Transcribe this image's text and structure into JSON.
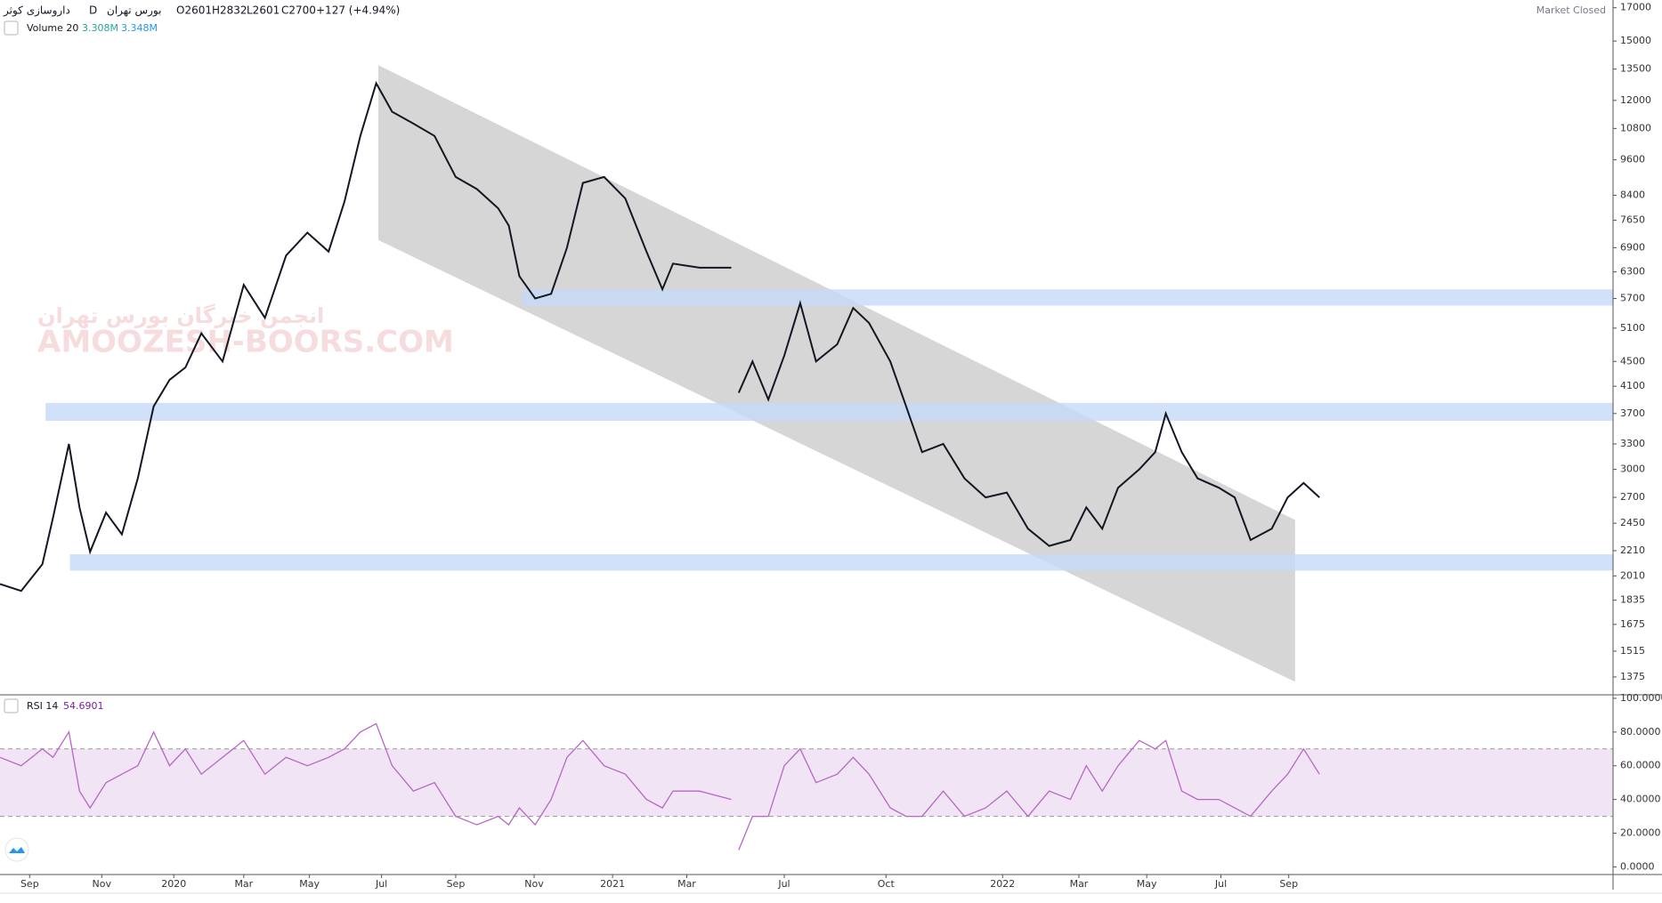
{
  "header": {
    "symbol": "داروسازی کوثر",
    "interval": "D",
    "exchange": "بورس تهران",
    "open": "O2601",
    "high": "H2832",
    "low": "L2601",
    "close": "C2700",
    "change": "+127 (+4.94%)",
    "status": "Market Closed"
  },
  "watermark": [
    "انجمن خبرگان بورس تهران",
    "AMOOZESH-BOORS.COM"
  ],
  "chart_data": [
    {
      "type": "line",
      "log_scale": true,
      "color": "#131722",
      "volume_legend": {
        "label": "Volume 20",
        "values": [
          "3.308M",
          "3.348M"
        ],
        "colors": [
          "#26a69a",
          "#2196f3"
        ]
      },
      "x": [
        0,
        10,
        20,
        25,
        32.5,
        37.5,
        42.5,
        50,
        57.5,
        65,
        72.5,
        80,
        87.5,
        95,
        105,
        115,
        125,
        135,
        145,
        155,
        162.5,
        170,
        177.5,
        185,
        195,
        205,
        215,
        225,
        235,
        240,
        245,
        252.5,
        260,
        267.5,
        275,
        285,
        295,
        305,
        312.5,
        317.5,
        330,
        345,
        346.5,
        348.5,
        355,
        362.5,
        370,
        377.5,
        385,
        395,
        402.5,
        410,
        420,
        427.5,
        435,
        445,
        455,
        465,
        475,
        485,
        495,
        505,
        512.5,
        520,
        527.5,
        537.5,
        545,
        550,
        557.5,
        565,
        575,
        582.5,
        590,
        600,
        607.5,
        615,
        622.5
      ],
      "values": [
        1950,
        1900,
        2100,
        2500,
        3300,
        2600,
        2200,
        2550,
        2350,
        2900,
        3800,
        4200,
        4400,
        5000,
        4500,
        6000,
        5300,
        6700,
        7300,
        6800,
        8200,
        10500,
        12800,
        11500,
        11000,
        10500,
        9000,
        8600,
        8000,
        7500,
        6200,
        5700,
        5800,
        6900,
        8800,
        9000,
        8300,
        6800,
        5900,
        6500,
        6400,
        6400,
        null,
        4000,
        4500,
        3900,
        4600,
        5600,
        4500,
        4800,
        5500,
        5200,
        4500,
        3800,
        3200,
        3300,
        2900,
        2700,
        2750,
        2400,
        2250,
        2300,
        2600,
        2400,
        2800,
        3000,
        3200,
        3700,
        3200,
        2900,
        2800,
        2700,
        2300,
        2400,
        2700,
        2850,
        2700
      ],
      "xlim": [
        0,
        761
      ],
      "xticks": [
        {
          "value": 14,
          "label": "Sep"
        },
        {
          "value": 48,
          "label": "Nov"
        },
        {
          "value": 82,
          "label": "2020"
        },
        {
          "value": 115,
          "label": "Mar"
        },
        {
          "value": 146,
          "label": "May"
        },
        {
          "value": 180,
          "label": "Jul"
        },
        {
          "value": 215,
          "label": "Sep"
        },
        {
          "value": 252,
          "label": "Nov"
        },
        {
          "value": 289,
          "label": "2021"
        },
        {
          "value": 324,
          "label": "Mar"
        },
        {
          "value": 370,
          "label": "Jul"
        },
        {
          "value": 418,
          "label": "Oct"
        },
        {
          "value": 473,
          "label": "2022"
        },
        {
          "value": 509,
          "label": "Mar"
        },
        {
          "value": 541,
          "label": "May"
        },
        {
          "value": 576,
          "label": "Jul"
        },
        {
          "value": 608,
          "label": "Sep"
        }
      ],
      "ylim": [
        1290,
        17500
      ],
      "yticks": [
        1375,
        1515,
        1675,
        1835,
        2010,
        2210,
        2450,
        2700,
        3000,
        3300,
        3700,
        4100,
        4500,
        5100,
        5700,
        6300,
        6900,
        7650,
        8400,
        9600,
        10800,
        12000,
        13500,
        15000,
        17000
      ],
      "zones": [
        {
          "from": 5550,
          "to": 5900,
          "x_start": 246.5
        },
        {
          "from": 3600,
          "to": 3850,
          "x_start": 21.5
        },
        {
          "from": 2050,
          "to": 2180,
          "x_start": 33
        }
      ],
      "zone_color": "#c5d9f7",
      "channel": {
        "top": [
          [
            178.5,
            13700
          ],
          [
            611,
            2480
          ]
        ],
        "bottom": [
          [
            178.5,
            7100
          ],
          [
            611,
            1350
          ]
        ]
      },
      "channel_color": "#cfcfcf"
    },
    {
      "type": "line",
      "title": "RSI 14",
      "last_value": "54.6901",
      "color": "#b667c6",
      "x": [
        0,
        10,
        20,
        25,
        32.5,
        37.5,
        42.5,
        50,
        57.5,
        65,
        72.5,
        80,
        87.5,
        95,
        105,
        115,
        125,
        135,
        145,
        155,
        162.5,
        170,
        177.5,
        185,
        195,
        205,
        215,
        225,
        235,
        240,
        245,
        252.5,
        260,
        267.5,
        275,
        285,
        295,
        305,
        312.5,
        317.5,
        330,
        345,
        346.5,
        348.5,
        355,
        362.5,
        370,
        377.5,
        385,
        395,
        402.5,
        410,
        420,
        427.5,
        435,
        445,
        455,
        465,
        475,
        485,
        495,
        505,
        512.5,
        520,
        527.5,
        537.5,
        545,
        550,
        557.5,
        565,
        575,
        582.5,
        590,
        600,
        607.5,
        615,
        622.5
      ],
      "values": [
        65,
        60,
        70,
        65,
        80,
        45,
        35,
        50,
        55,
        60,
        80,
        60,
        70,
        55,
        65,
        75,
        55,
        65,
        60,
        65,
        70,
        80,
        85,
        60,
        45,
        50,
        30,
        25,
        30,
        25,
        35,
        25,
        40,
        65,
        75,
        60,
        55,
        40,
        35,
        45,
        45,
        40,
        null,
        10,
        30,
        30,
        60,
        70,
        50,
        55,
        65,
        55,
        35,
        30,
        30,
        45,
        30,
        35,
        45,
        30,
        45,
        40,
        60,
        45,
        60,
        75,
        70,
        75,
        45,
        40,
        40,
        35,
        30,
        45,
        55,
        70,
        55
      ],
      "xlim": [
        0,
        761
      ],
      "ylim": [
        -4,
        100.5
      ],
      "yticks": [
        {
          "value": 100,
          "label": "100.0000"
        },
        {
          "value": 80,
          "label": "80.0000"
        },
        {
          "value": 60,
          "label": "60.0000"
        },
        {
          "value": 40,
          "label": "40.0000"
        },
        {
          "value": 20,
          "label": "20.0000"
        },
        {
          "value": 0,
          "label": "0.0000"
        }
      ],
      "band": [
        30,
        70
      ],
      "band_color": "#f1e4f4"
    }
  ]
}
